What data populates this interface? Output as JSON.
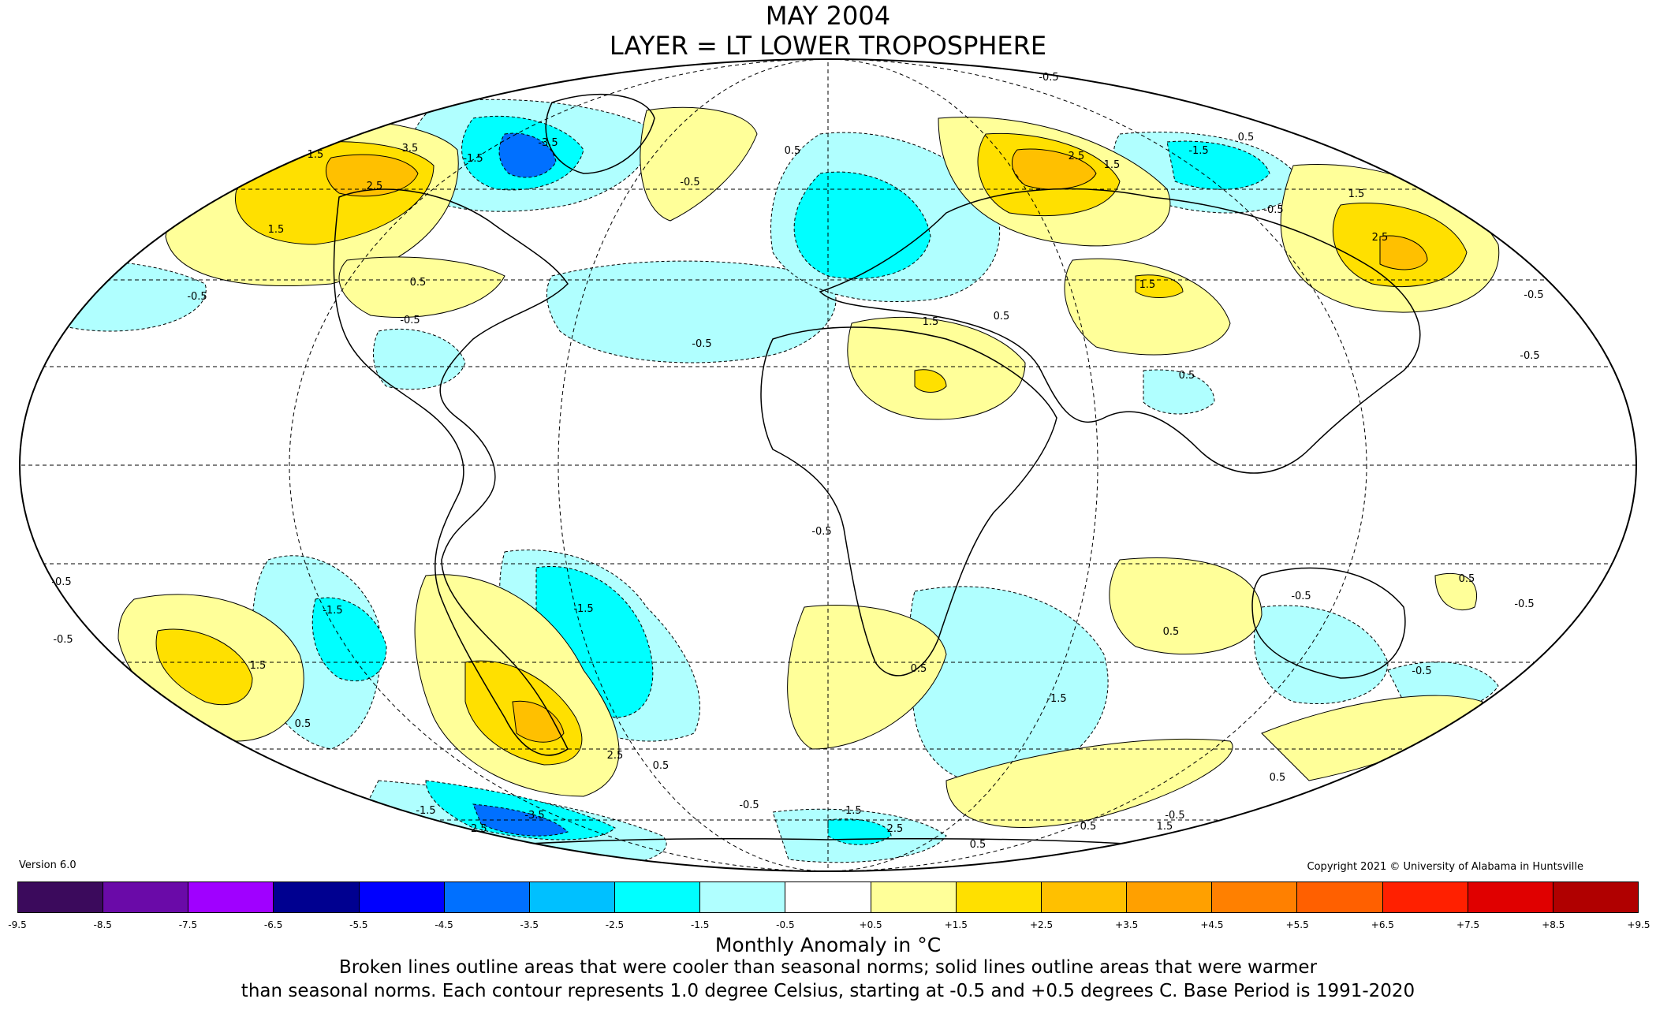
{
  "title_line1": "MAY 2004",
  "title_line2": "LAYER = LT LOWER TROPOSPHERE",
  "version": "Version 6.0",
  "copyright": "Copyright 2021 © University of Alabama in Huntsville",
  "legend": {
    "units_label": "Monthly Anomaly in °C",
    "colors": [
      "#3b0a5c",
      "#6a0aa8",
      "#a000ff",
      "#000090",
      "#0000ff",
      "#0070ff",
      "#00c0ff",
      "#00ffff",
      "#b0ffff",
      "#ffffff",
      "#ffff99",
      "#ffe000",
      "#ffc000",
      "#ffa000",
      "#ff8000",
      "#ff6000",
      "#ff2000",
      "#e00000",
      "#b00000"
    ],
    "ticks": [
      "-9.5",
      "-8.5",
      "-7.5",
      "-6.5",
      "-5.5",
      "-4.5",
      "-3.5",
      "-2.5",
      "-1.5",
      "-0.5",
      "+0.5",
      "+1.5",
      "+2.5",
      "+3.5",
      "+4.5",
      "+5.5",
      "+6.5",
      "+7.5",
      "+8.5",
      "+9.5"
    ]
  },
  "caption_line1": "Broken lines outline areas that were cooler than seasonal norms; solid lines outline areas that were warmer",
  "caption_line2": "than seasonal norms. Each contour represents 1.0 degree Celsius, starting at -0.5 and +0.5 degrees C. Base Period is 1991-2020",
  "map": {
    "contour_labels": [
      {
        "text": "-0.5",
        "pos": "arctic-top"
      },
      {
        "text": "1.5",
        "pos": "alaska"
      },
      {
        "text": "3.5",
        "pos": "alaska"
      },
      {
        "text": "2.5",
        "pos": "alaska"
      },
      {
        "text": "1.5",
        "pos": "alaska-south"
      },
      {
        "text": "-1.5",
        "pos": "greenland-west"
      },
      {
        "text": "-3.5",
        "pos": "greenland"
      },
      {
        "text": "-0.5",
        "pos": "north-atlantic"
      },
      {
        "text": "0.5",
        "pos": "north-atlantic-yellow"
      },
      {
        "text": "0.5",
        "pos": "north-america"
      },
      {
        "text": "-0.5",
        "pos": "pacific-west"
      },
      {
        "text": "-0.5",
        "pos": "mexico"
      },
      {
        "text": "-0.5",
        "pos": "central-atlantic"
      },
      {
        "text": "1.5",
        "pos": "sahara"
      },
      {
        "text": "0.5",
        "pos": "egypt"
      },
      {
        "text": "2.5",
        "pos": "siberia"
      },
      {
        "text": "1.5",
        "pos": "siberia"
      },
      {
        "text": "-1.5",
        "pos": "east-siberia"
      },
      {
        "text": "0.5",
        "pos": "east-siberia"
      },
      {
        "text": "-0.5",
        "pos": "far-east"
      },
      {
        "text": "1.5",
        "pos": "far-east"
      },
      {
        "text": "2.5",
        "pos": "far-east"
      },
      {
        "text": "1.5",
        "pos": "tibet"
      },
      {
        "text": "-0.5",
        "pos": "pacific-east"
      },
      {
        "text": "0.5",
        "pos": "india"
      },
      {
        "text": "-0.5",
        "pos": "south-atlantic"
      },
      {
        "text": "-1.5",
        "pos": "south-pacific"
      },
      {
        "text": "1.5",
        "pos": "south-pacific-warm"
      },
      {
        "text": "0.5",
        "pos": "south-pacific-warm"
      },
      {
        "text": "-0.5",
        "pos": "south-pacific-west"
      },
      {
        "text": "-1.5",
        "pos": "argentina"
      },
      {
        "text": "2.5",
        "pos": "patagonia-west"
      },
      {
        "text": "0.5",
        "pos": "patagonia"
      },
      {
        "text": "-0.5",
        "pos": "drake"
      },
      {
        "text": "-1.5",
        "pos": "antarctic-pacific"
      },
      {
        "text": "-2.5",
        "pos": "antarctic-pacific"
      },
      {
        "text": "-3.5",
        "pos": "antarctic-pacific"
      },
      {
        "text": "-1.5",
        "pos": "antarctic-atlantic"
      },
      {
        "text": "2.5",
        "pos": "antarctic-atlantic"
      },
      {
        "text": "0.5",
        "pos": "south-africa"
      },
      {
        "text": "-1.5",
        "pos": "indian-ocean"
      },
      {
        "text": "0.5",
        "pos": "indian-ocean-east"
      },
      {
        "text": "-0.5",
        "pos": "australia"
      },
      {
        "text": "-0.5",
        "pos": "australia-east"
      },
      {
        "text": "0.5",
        "pos": "southern-ocean"
      },
      {
        "text": "0.5",
        "pos": "southern-ocean-2"
      },
      {
        "text": "-0.5",
        "pos": "southern-ocean-3"
      },
      {
        "text": "0.5",
        "pos": "southern-ocean-4"
      },
      {
        "text": "1.5",
        "pos": "southern-ocean-5"
      },
      {
        "text": "-0.5",
        "pos": "west-edge"
      },
      {
        "text": "-0.5",
        "pos": "east-edge"
      },
      {
        "text": "0.5",
        "pos": "new-zealand"
      },
      {
        "text": "-0.5",
        "pos": "north-pacific-east"
      }
    ]
  }
}
